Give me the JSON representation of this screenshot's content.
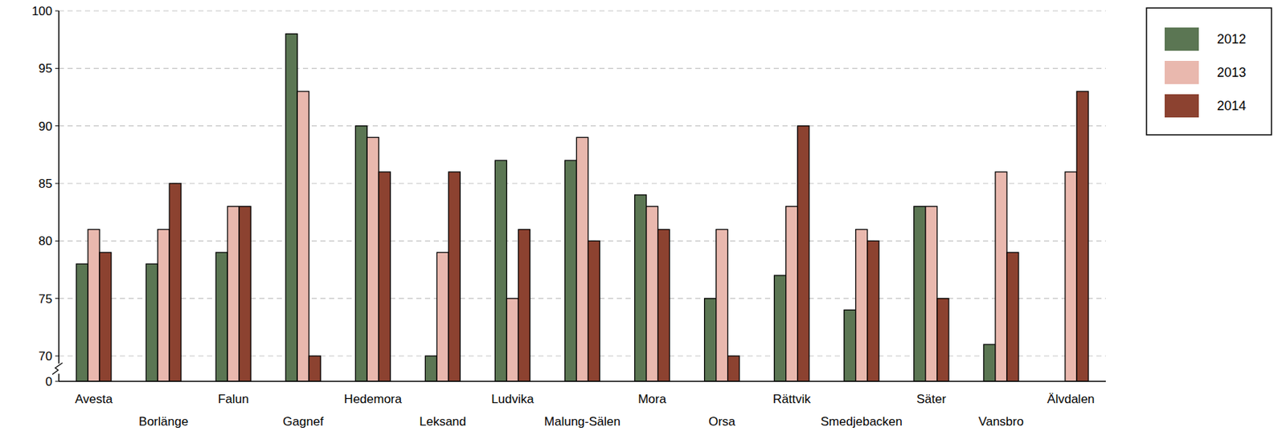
{
  "chart_data": {
    "type": "bar",
    "categories": [
      "Avesta",
      "Borlänge",
      "Falun",
      "Gagnef",
      "Hedemora",
      "Leksand",
      "Ludvika",
      "Malung-Sälen",
      "Mora",
      "Orsa",
      "Rättvik",
      "Smedjebacken",
      "Säter",
      "Vansbro",
      "Älvdalen"
    ],
    "series": [
      {
        "name": "2012",
        "color": "#5b7653",
        "values": [
          78,
          78,
          79,
          98,
          90,
          70,
          87,
          87,
          84,
          75,
          77,
          74,
          83,
          71,
          null
        ]
      },
      {
        "name": "2013",
        "color": "#e9b8ae",
        "values": [
          81,
          81,
          83,
          93,
          89,
          79,
          75,
          89,
          83,
          81,
          83,
          81,
          83,
          86,
          86
        ]
      },
      {
        "name": "2014",
        "color": "#8c4230",
        "values": [
          79,
          85,
          83,
          70,
          86,
          86,
          81,
          80,
          81,
          70,
          90,
          80,
          75,
          79,
          93
        ]
      }
    ],
    "ylim": [
      0,
      100
    ],
    "yticks": [
      0,
      70,
      75,
      80,
      85,
      90,
      95,
      100
    ],
    "grid": true,
    "legend": "top-right"
  }
}
